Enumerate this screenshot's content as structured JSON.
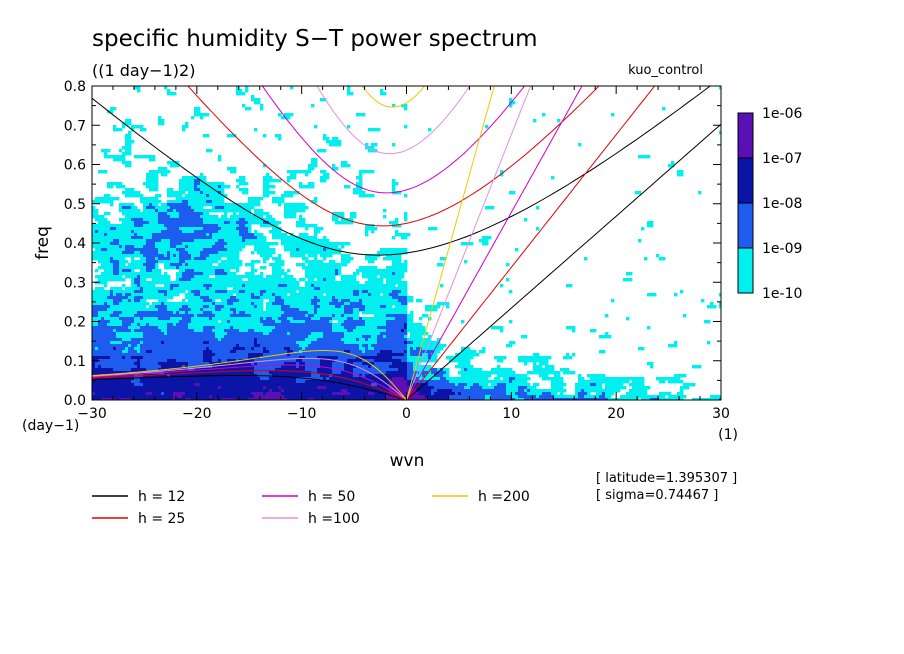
{
  "chart_data": {
    "type": "heatmap",
    "title": "specific humidity S−T power spectrum",
    "units_label": "((1 day−1)2)",
    "run_label": "kuo_control",
    "xlabel": "wvn",
    "ylabel": "freq",
    "y_unit_label": "(day−1)",
    "x_unit_label": "(1)",
    "xlim": [
      -30,
      30
    ],
    "ylim": [
      0,
      0.8
    ],
    "x_ticks": [
      -30,
      -20,
      -10,
      0,
      10,
      20,
      30
    ],
    "x_tick_labels": [
      "−30",
      "−20",
      "−10",
      "0",
      "10",
      "20",
      "30"
    ],
    "y_ticks": [
      0,
      0.1,
      0.2,
      0.3,
      0.4,
      0.5,
      0.6,
      0.7,
      0.8
    ],
    "y_tick_labels": [
      "0.0",
      "0.1",
      "0.2",
      "0.3",
      "0.4",
      "0.5",
      "0.6",
      "0.7",
      "0.8"
    ],
    "colorbar": {
      "labels": [
        "1e-06",
        "1e-07",
        "1e-08",
        "1e-09",
        "1e-10"
      ],
      "colors": [
        "#5a10b4",
        "#0c14a8",
        "#1e5cf0",
        "#00f0f0"
      ]
    },
    "contour_colors": [
      "#ffffff",
      "#00f0f0",
      "#1e5cf0",
      "#0c14a8"
    ],
    "series": [
      {
        "name": "h = 12",
        "color": "#000000",
        "equivalent_depth": 12
      },
      {
        "name": "h = 25",
        "color": "#e00000",
        "equivalent_depth": 25
      },
      {
        "name": "h = 50",
        "color": "#d000c8",
        "equivalent_depth": 50
      },
      {
        "name": "h =100",
        "color": "#e090e0",
        "equivalent_depth": 100
      },
      {
        "name": "h =200",
        "color": "#f0c800",
        "equivalent_depth": 200
      }
    ],
    "annotations": [
      "[ latitude=1.395307 ]",
      "[ sigma=0.74467 ]"
    ]
  }
}
